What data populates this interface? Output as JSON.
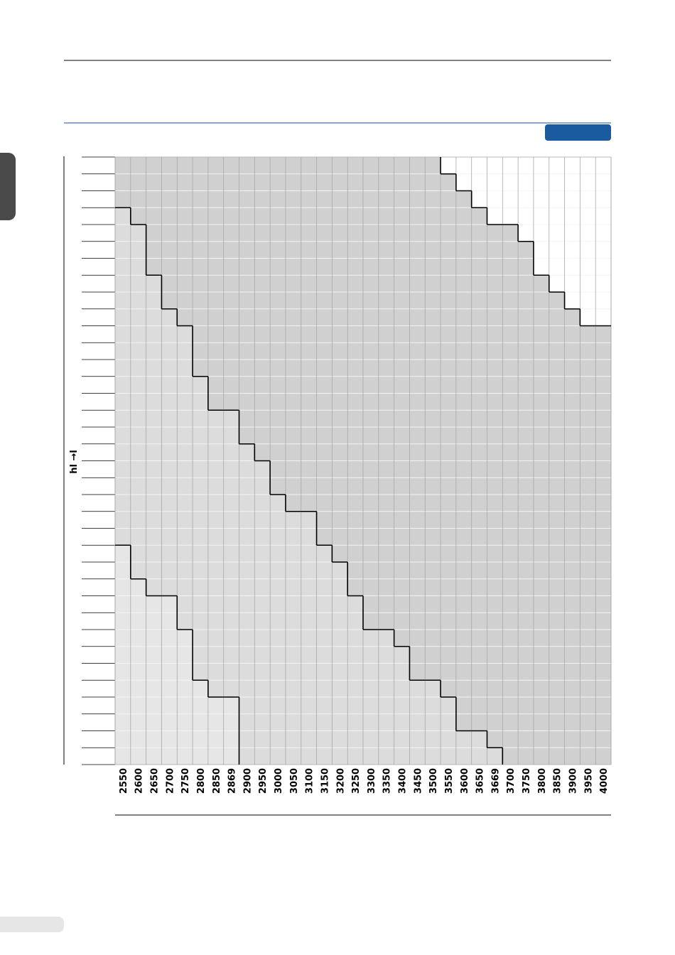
{
  "chart_data": {
    "type": "step-grid",
    "y_label": "hl →l",
    "categories": [
      "2550",
      "2600",
      "2650",
      "2700",
      "2750",
      "2800",
      "2850",
      "2869",
      "2900",
      "2950",
      "3000",
      "3050",
      "3100",
      "3150",
      "3200",
      "3250",
      "3300",
      "3350",
      "3400",
      "3450",
      "3500",
      "3550",
      "3600",
      "3650",
      "3669",
      "3700",
      "3750",
      "3800",
      "3850",
      "3900",
      "3950",
      "4000"
    ],
    "rows": 36,
    "series": [
      {
        "color": "#d0d0d0",
        "values": [
          0,
          0,
          0,
          0,
          0,
          0,
          0,
          0,
          0,
          0,
          0,
          0,
          0,
          0,
          0,
          0,
          0,
          0,
          0,
          0,
          0,
          1,
          2,
          3,
          4,
          4,
          5,
          7,
          8,
          9,
          10,
          10
        ]
      },
      {
        "color": "#dcdcdc",
        "values": [
          3,
          4,
          7,
          9,
          10,
          13,
          15,
          15,
          17,
          18,
          20,
          21,
          21,
          23,
          24,
          26,
          28,
          28,
          29,
          31,
          31,
          32,
          34,
          34,
          35,
          36,
          36,
          36,
          36,
          36,
          36,
          36
        ]
      },
      {
        "color": "#e6e6e6",
        "values": [
          23,
          25,
          26,
          26,
          28,
          31,
          32,
          32,
          36,
          36,
          36,
          36,
          36,
          36,
          36,
          36,
          36,
          36,
          36,
          36,
          36,
          36,
          36,
          36,
          36,
          36,
          36,
          36,
          36,
          36,
          36,
          36
        ]
      }
    ]
  }
}
